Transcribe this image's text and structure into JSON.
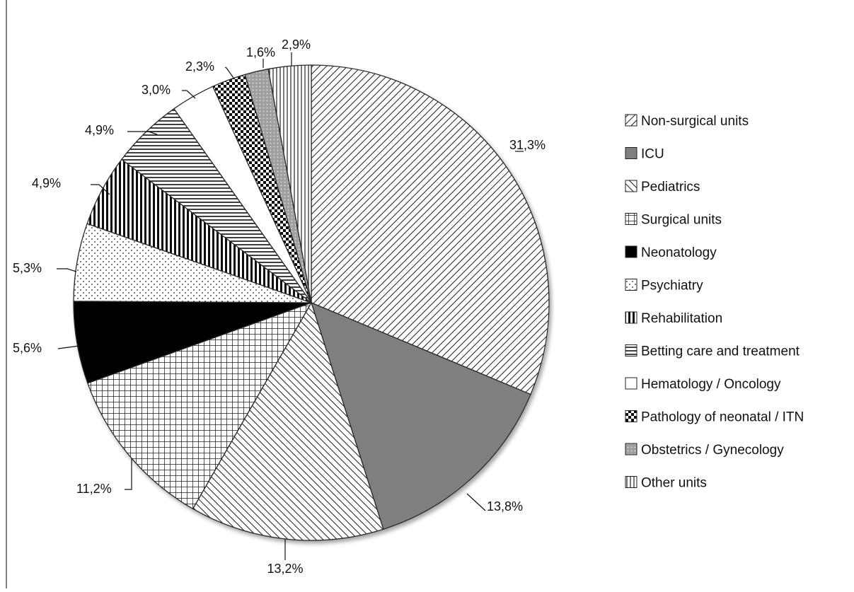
{
  "chart_data": {
    "type": "pie",
    "title": "",
    "legend_position": "right",
    "slices": [
      {
        "label": "Non-surgical units",
        "value": 31.3,
        "value_label": "31,3%",
        "pattern": "diag-right",
        "color": "#ffffff"
      },
      {
        "label": "ICU",
        "value": 13.8,
        "value_label": "13,8%",
        "pattern": "solid-gray",
        "color": "#7f7f7f"
      },
      {
        "label": "Pediatrics",
        "value": 13.2,
        "value_label": "13,2%",
        "pattern": "diag-left",
        "color": "#ffffff"
      },
      {
        "label": "Surgical units",
        "value": 11.2,
        "value_label": "11,2%",
        "pattern": "grid",
        "color": "#ffffff"
      },
      {
        "label": "Neonatology",
        "value": 5.6,
        "value_label": "5,6%",
        "pattern": "solid-black",
        "color": "#000000"
      },
      {
        "label": "Psychiatry",
        "value": 5.3,
        "value_label": "5,3%",
        "pattern": "dots",
        "color": "#ffffff"
      },
      {
        "label": "Rehabilitation",
        "value": 4.9,
        "value_label": "4,9%",
        "pattern": "vertical",
        "color": "#ffffff"
      },
      {
        "label": "Betting care and treatment",
        "value": 4.9,
        "value_label": "4,9%",
        "pattern": "horizontal",
        "color": "#ffffff"
      },
      {
        "label": "Hematology / Oncology",
        "value": 3.0,
        "value_label": "3,0%",
        "pattern": "white",
        "color": "#ffffff"
      },
      {
        "label": "Pathology of neonatal / ITN",
        "value": 2.3,
        "value_label": "2,3%",
        "pattern": "checker",
        "color": "#000000"
      },
      {
        "label": "Obstetrics / Gynecology",
        "value": 1.6,
        "value_label": "1,6%",
        "pattern": "gray-dots",
        "color": "#9a9a9a"
      },
      {
        "label": "Other units",
        "value": 2.9,
        "value_label": "2,9%",
        "pattern": "vertical-thin",
        "color": "#ffffff"
      }
    ]
  }
}
